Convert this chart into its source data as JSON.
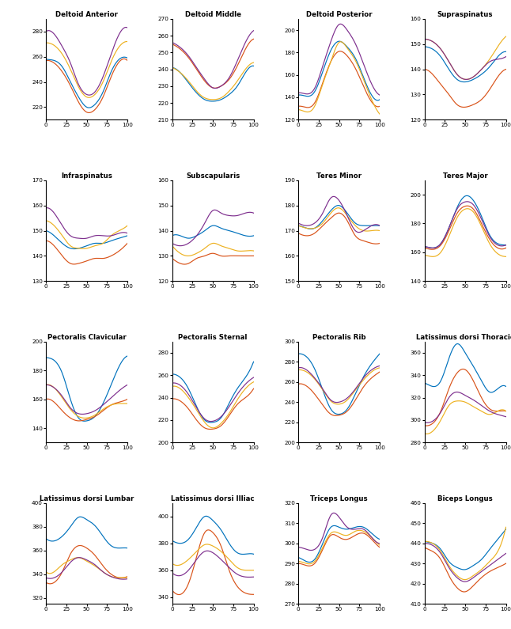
{
  "subplots": [
    {
      "title": "Deltoid Anterior",
      "ylim": [
        210,
        290
      ],
      "yticks": [
        220,
        240,
        260,
        280
      ],
      "curves": {
        "blue": [
          258,
          257,
          252,
          240,
          228,
          220,
          222,
          232,
          248,
          258,
          259
        ],
        "red": [
          257,
          255,
          248,
          237,
          224,
          216,
          218,
          228,
          244,
          256,
          257
        ],
        "yellow": [
          271,
          269,
          262,
          250,
          236,
          228,
          230,
          240,
          256,
          268,
          272
        ],
        "purple": [
          280,
          278,
          268,
          255,
          238,
          230,
          232,
          244,
          262,
          278,
          283
        ]
      }
    },
    {
      "title": "Deltoid Middle",
      "ylim": [
        210,
        270
      ],
      "yticks": [
        210,
        220,
        230,
        240,
        250,
        260,
        270
      ],
      "curves": {
        "blue": [
          241,
          238,
          232,
          226,
          222,
          221,
          222,
          225,
          230,
          238,
          242
        ],
        "red": [
          255,
          252,
          247,
          240,
          233,
          229,
          230,
          234,
          242,
          252,
          258
        ],
        "yellow": [
          241,
          238,
          233,
          227,
          223,
          222,
          223,
          227,
          233,
          240,
          244
        ],
        "purple": [
          256,
          253,
          248,
          241,
          234,
          229,
          230,
          235,
          245,
          256,
          263
        ]
      }
    },
    {
      "title": "Deltoid Posterior",
      "ylim": [
        120,
        210
      ],
      "yticks": [
        120,
        140,
        160,
        180,
        200
      ],
      "curves": {
        "blue": [
          142,
          141,
          145,
          163,
          182,
          190,
          185,
          175,
          158,
          142,
          138
        ],
        "red": [
          132,
          131,
          135,
          153,
          172,
          181,
          177,
          166,
          150,
          136,
          132
        ],
        "yellow": [
          129,
          127,
          132,
          152,
          172,
          189,
          184,
          173,
          156,
          138,
          125
        ],
        "purple": [
          144,
          143,
          148,
          168,
          190,
          205,
          200,
          188,
          170,
          152,
          142
        ]
      }
    },
    {
      "title": "Supraspinatus",
      "ylim": [
        120,
        160
      ],
      "yticks": [
        120,
        130,
        140,
        150,
        160
      ],
      "curves": {
        "blue": [
          149,
          148,
          145,
          140,
          136,
          135,
          136,
          138,
          141,
          145,
          147
        ],
        "red": [
          140,
          138,
          134,
          130,
          126,
          125,
          126,
          128,
          132,
          137,
          140
        ],
        "yellow": [
          152,
          151,
          148,
          143,
          138,
          136,
          137,
          140,
          144,
          149,
          153
        ],
        "purple": [
          152,
          151,
          148,
          143,
          138,
          136,
          137,
          140,
          143,
          144,
          145
        ]
      }
    },
    {
      "title": "Infraspinatus",
      "ylim": [
        130,
        170
      ],
      "yticks": [
        130,
        140,
        150,
        160,
        170
      ],
      "curves": {
        "blue": [
          150,
          148,
          145,
          143,
          143,
          144,
          145,
          145,
          146,
          147,
          148
        ],
        "red": [
          146,
          144,
          140,
          137,
          137,
          138,
          139,
          139,
          140,
          142,
          145
        ],
        "yellow": [
          154,
          152,
          148,
          144,
          143,
          143,
          144,
          145,
          148,
          150,
          152
        ],
        "purple": [
          159,
          157,
          152,
          148,
          147,
          147,
          148,
          148,
          148,
          149,
          149
        ]
      }
    },
    {
      "title": "Subscapularis",
      "ylim": [
        120,
        160
      ],
      "yticks": [
        120,
        130,
        140,
        150,
        160
      ],
      "curves": {
        "blue": [
          138,
          138,
          137,
          138,
          140,
          142,
          141,
          140,
          139,
          138,
          138
        ],
        "red": [
          129,
          127,
          127,
          129,
          130,
          131,
          130,
          130,
          130,
          130,
          130
        ],
        "yellow": [
          134,
          131,
          130,
          131,
          133,
          135,
          134,
          133,
          132,
          132,
          132
        ],
        "purple": [
          135,
          134,
          135,
          138,
          143,
          148,
          147,
          146,
          146,
          147,
          147
        ]
      }
    },
    {
      "title": "Teres Minor",
      "ylim": [
        150,
        190
      ],
      "yticks": [
        150,
        160,
        170,
        180,
        190
      ],
      "curves": {
        "blue": [
          172,
          171,
          171,
          174,
          178,
          180,
          177,
          173,
          172,
          172,
          172
        ],
        "red": [
          169,
          168,
          169,
          172,
          175,
          177,
          174,
          168,
          166,
          165,
          165
        ],
        "yellow": [
          172,
          171,
          171,
          173,
          177,
          179,
          176,
          172,
          170,
          170,
          170
        ],
        "purple": [
          173,
          172,
          173,
          177,
          183,
          182,
          176,
          170,
          170,
          172,
          172
        ]
      }
    },
    {
      "title": "Teres Major",
      "ylim": [
        140,
        210
      ],
      "yticks": [
        140,
        160,
        180,
        200
      ],
      "curves": {
        "blue": [
          164,
          163,
          166,
          177,
          191,
          199,
          196,
          185,
          172,
          166,
          165
        ],
        "red": [
          163,
          162,
          165,
          175,
          187,
          192,
          190,
          180,
          169,
          163,
          163
        ],
        "yellow": [
          158,
          157,
          160,
          171,
          184,
          190,
          188,
          178,
          166,
          159,
          157
        ],
        "purple": [
          164,
          163,
          166,
          177,
          190,
          195,
          193,
          183,
          171,
          165,
          165
        ]
      }
    },
    {
      "title": "Pectoralis Clavicular",
      "ylim": [
        130,
        200
      ],
      "yticks": [
        140,
        160,
        180,
        200
      ],
      "curves": {
        "blue": [
          189,
          187,
          178,
          160,
          147,
          145,
          148,
          157,
          170,
          183,
          190
        ],
        "red": [
          160,
          158,
          152,
          147,
          145,
          146,
          148,
          152,
          156,
          158,
          160
        ],
        "yellow": [
          170,
          168,
          161,
          153,
          148,
          147,
          149,
          153,
          156,
          157,
          157
        ],
        "purple": [
          170,
          168,
          162,
          154,
          150,
          150,
          152,
          156,
          161,
          166,
          170
        ]
      }
    },
    {
      "title": "Pectoralis Sternal",
      "ylim": [
        200,
        290
      ],
      "yticks": [
        200,
        220,
        240,
        260,
        280
      ],
      "curves": {
        "blue": [
          261,
          258,
          248,
          232,
          220,
          218,
          222,
          235,
          248,
          258,
          272
        ],
        "red": [
          239,
          237,
          230,
          220,
          213,
          212,
          215,
          224,
          234,
          240,
          248
        ],
        "yellow": [
          250,
          248,
          240,
          229,
          218,
          213,
          217,
          226,
          238,
          248,
          254
        ],
        "purple": [
          253,
          251,
          243,
          231,
          221,
          219,
          223,
          232,
          243,
          252,
          258
        ]
      }
    },
    {
      "title": "Pectoralis Rib",
      "ylim": [
        200,
        300
      ],
      "yticks": [
        200,
        220,
        240,
        260,
        280,
        300
      ],
      "curves": {
        "blue": [
          288,
          285,
          273,
          252,
          233,
          228,
          233,
          248,
          265,
          278,
          288
        ],
        "red": [
          258,
          256,
          248,
          237,
          228,
          227,
          231,
          242,
          255,
          264,
          270
        ],
        "yellow": [
          272,
          270,
          263,
          252,
          241,
          238,
          242,
          252,
          262,
          270,
          274
        ],
        "purple": [
          274,
          272,
          264,
          253,
          242,
          240,
          244,
          253,
          264,
          272,
          276
        ]
      }
    },
    {
      "title": "Latissimus dorsi Thoracic",
      "ylim": [
        280,
        370
      ],
      "yticks": [
        280,
        300,
        320,
        340,
        360
      ],
      "curves": {
        "blue": [
          333,
          330,
          335,
          355,
          368,
          360,
          348,
          335,
          325,
          328,
          330
        ],
        "red": [
          295,
          297,
          308,
          328,
          342,
          345,
          335,
          320,
          310,
          308,
          308
        ],
        "yellow": [
          288,
          290,
          300,
          313,
          317,
          316,
          312,
          308,
          305,
          308,
          308
        ],
        "purple": [
          298,
          299,
          307,
          320,
          325,
          322,
          318,
          313,
          308,
          305,
          303
        ]
      }
    },
    {
      "title": "Latissimus dorsi Lumbar",
      "ylim": [
        315,
        400
      ],
      "yticks": [
        320,
        340,
        360,
        380,
        400
      ],
      "curves": {
        "blue": [
          370,
          368,
          372,
          380,
          388,
          386,
          381,
          372,
          364,
          362,
          362
        ],
        "red": [
          333,
          333,
          342,
          357,
          364,
          362,
          356,
          347,
          340,
          337,
          338
        ],
        "yellow": [
          342,
          342,
          348,
          352,
          354,
          351,
          347,
          342,
          338,
          337,
          337
        ],
        "purple": [
          337,
          337,
          342,
          350,
          354,
          352,
          348,
          342,
          338,
          336,
          336
        ]
      }
    },
    {
      "title": "Latissimus dorsi Illiac",
      "ylim": [
        335,
        410
      ],
      "yticks": [
        340,
        360,
        380,
        400
      ],
      "curves": {
        "blue": [
          382,
          380,
          383,
          392,
          400,
          397,
          390,
          380,
          373,
          372,
          372
        ],
        "red": [
          345,
          342,
          350,
          370,
          388,
          388,
          378,
          360,
          348,
          343,
          342
        ],
        "yellow": [
          365,
          364,
          368,
          374,
          379,
          378,
          374,
          368,
          362,
          360,
          360
        ],
        "purple": [
          358,
          356,
          360,
          368,
          374,
          373,
          368,
          362,
          357,
          355,
          355
        ]
      }
    },
    {
      "title": "Triceps Longus",
      "ylim": [
        270,
        320
      ],
      "yticks": [
        270,
        280,
        290,
        300,
        310,
        320
      ],
      "curves": {
        "blue": [
          293,
          291,
          292,
          300,
          308,
          308,
          307,
          308,
          308,
          305,
          302
        ],
        "red": [
          290,
          289,
          290,
          297,
          304,
          303,
          302,
          304,
          305,
          302,
          298
        ],
        "yellow": [
          291,
          290,
          291,
          298,
          305,
          305,
          304,
          306,
          306,
          303,
          299
        ],
        "purple": [
          298,
          297,
          297,
          303,
          314,
          313,
          308,
          307,
          307,
          303,
          300
        ]
      }
    },
    {
      "title": "Biceps Longus",
      "ylim": [
        410,
        460
      ],
      "yticks": [
        410,
        420,
        430,
        440,
        450,
        460
      ],
      "curves": {
        "blue": [
          441,
          440,
          437,
          431,
          428,
          427,
          429,
          432,
          437,
          442,
          447
        ],
        "red": [
          438,
          436,
          432,
          424,
          418,
          416,
          419,
          423,
          426,
          428,
          430
        ],
        "yellow": [
          441,
          440,
          436,
          429,
          424,
          422,
          424,
          427,
          431,
          436,
          448
        ],
        "purple": [
          440,
          439,
          435,
          428,
          423,
          421,
          423,
          426,
          429,
          432,
          435
        ]
      }
    }
  ],
  "colors": {
    "blue": "#0072BD",
    "red": "#D95319",
    "yellow": "#EDB120",
    "purple": "#7E2F8E"
  }
}
